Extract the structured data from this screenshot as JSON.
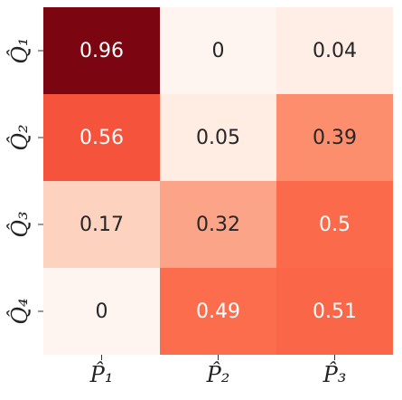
{
  "chart_data": {
    "type": "heatmap",
    "x_labels": [
      "P̂₁",
      "P̂₂",
      "P̂₃"
    ],
    "y_labels": [
      "Q̂₁",
      "Q̂₂",
      "Q̂₃",
      "Q̂₄"
    ],
    "values": [
      [
        0.96,
        0,
        0.04
      ],
      [
        0.56,
        0.05,
        0.39
      ],
      [
        0.17,
        0.32,
        0.5
      ],
      [
        0,
        0.49,
        0.51
      ]
    ],
    "cell_labels": [
      [
        "0.96",
        "0",
        "0.04"
      ],
      [
        "0.56",
        "0.05",
        "0.39"
      ],
      [
        "0.17",
        "0.32",
        "0.5"
      ],
      [
        "0",
        "0.49",
        "0.51"
      ]
    ],
    "colormap": "Reds",
    "vmin": 0,
    "vmax": 1,
    "legend": "none",
    "grid": false
  }
}
